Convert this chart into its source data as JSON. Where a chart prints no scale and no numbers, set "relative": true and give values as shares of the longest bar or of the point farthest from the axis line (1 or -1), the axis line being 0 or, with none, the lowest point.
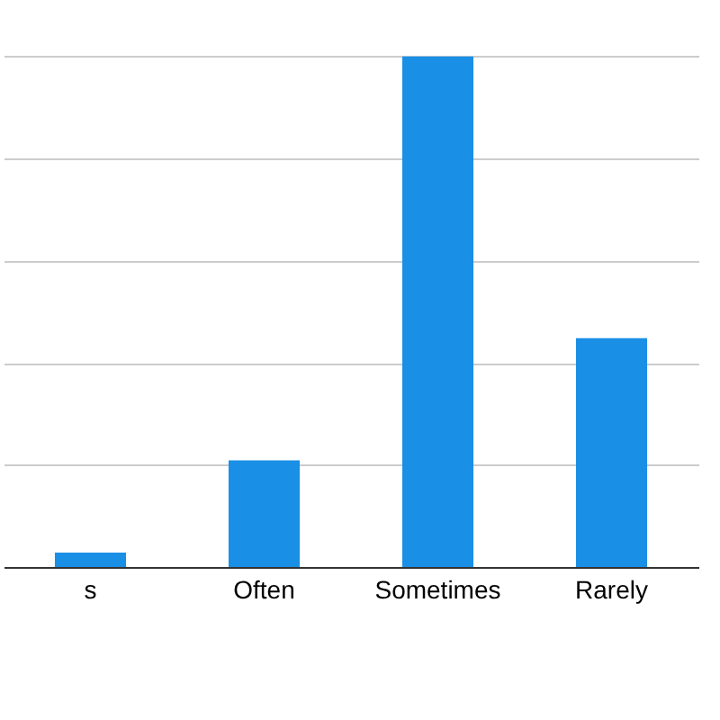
{
  "chart_data": {
    "type": "bar",
    "relative": true,
    "categories": [
      "s",
      "Often",
      "Sometimes",
      "Rarely"
    ],
    "values": [
      0.028,
      0.209,
      1,
      0.448
    ],
    "color": "#1a8fe6",
    "grid": "y"
  }
}
